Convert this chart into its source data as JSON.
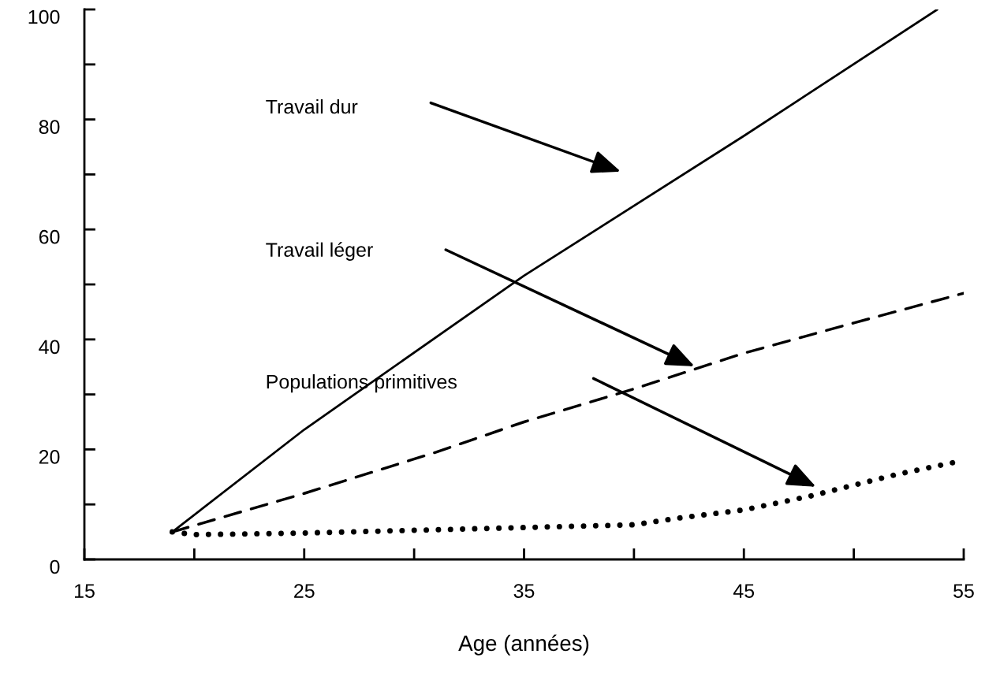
{
  "chart_data": {
    "type": "line",
    "xlabel": "Age (années)",
    "xlim": [
      15,
      55
    ],
    "ylim": [
      0,
      100
    ],
    "xticks": [
      15,
      {
        "value": 20,
        "label": null
      },
      25,
      {
        "value": 30,
        "label": null
      },
      35,
      {
        "value": 40,
        "label": null
      },
      45,
      {
        "value": 50,
        "label": null
      },
      55
    ],
    "yticks": [
      0,
      {
        "value": 10,
        "label": null
      },
      20,
      {
        "value": 30,
        "label": null
      },
      40,
      {
        "value": 50,
        "label": null
      },
      60,
      {
        "value": 70,
        "label": null
      },
      80,
      {
        "value": 90,
        "label": null
      },
      100
    ],
    "grid": false,
    "legend": false,
    "marker": "none",
    "series": [
      {
        "color": "#000000",
        "line_style": "solid",
        "x": [
          19,
          25,
          35,
          45,
          53.8
        ],
        "values": [
          5,
          23.6,
          51.6,
          77,
          100
        ]
      },
      {
        "color": "#000000",
        "line_style": "dashed",
        "x": [
          19,
          25,
          31,
          35,
          40,
          45,
          50,
          55
        ],
        "values": [
          5,
          12,
          19.5,
          25,
          31,
          37.5,
          43,
          48.4
        ]
      },
      {
        "color": "#000000",
        "line_style": "dotted",
        "x": [
          19,
          20,
          25,
          30,
          35,
          40,
          42,
          45,
          48,
          50,
          52,
          55
        ],
        "values": [
          5,
          4.5,
          4.8,
          5.3,
          5.8,
          6.3,
          7.5,
          9,
          11.5,
          13.5,
          15.5,
          18
        ]
      }
    ],
    "annotations": [
      "Travail dur",
      "Travail léger",
      "Populations primitives"
    ]
  }
}
